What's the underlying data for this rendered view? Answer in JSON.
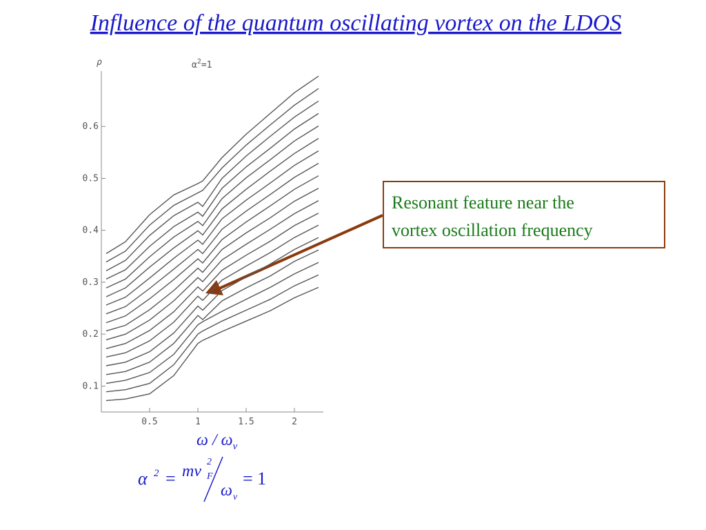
{
  "title": "Influence of the quantum oscillating vortex on the LDOS",
  "chart_data": {
    "type": "line",
    "ylabel": "ρ",
    "plot_label": {
      "base": "α",
      "sup": "2",
      "rest": "=1"
    },
    "xlabel": {
      "main": "ω / ω",
      "sub": "v"
    },
    "color": "#555555",
    "x": [
      0.05,
      0.25,
      0.5,
      0.75,
      1.0,
      1.05,
      1.25,
      1.5,
      1.75,
      2.0,
      2.25
    ],
    "series": [
      {
        "values": [
          0.072,
          0.075,
          0.085,
          0.12,
          0.182,
          0.188,
          0.205,
          0.225,
          0.245,
          0.27,
          0.29
        ]
      },
      {
        "values": [
          0.089,
          0.093,
          0.105,
          0.141,
          0.2,
          0.206,
          0.225,
          0.246,
          0.267,
          0.293,
          0.314
        ]
      },
      {
        "values": [
          0.105,
          0.111,
          0.126,
          0.161,
          0.218,
          0.224,
          0.244,
          0.267,
          0.29,
          0.316,
          0.338
        ]
      },
      {
        "values": [
          0.122,
          0.128,
          0.146,
          0.182,
          0.236,
          0.228,
          0.264,
          0.289,
          0.312,
          0.34,
          0.362
        ]
      },
      {
        "values": [
          0.139,
          0.146,
          0.166,
          0.202,
          0.254,
          0.246,
          0.284,
          0.31,
          0.335,
          0.363,
          0.386
        ]
      },
      {
        "values": [
          0.156,
          0.164,
          0.187,
          0.223,
          0.273,
          0.265,
          0.304,
          0.331,
          0.357,
          0.386,
          0.41
        ]
      },
      {
        "values": [
          0.172,
          0.182,
          0.207,
          0.243,
          0.291,
          0.283,
          0.323,
          0.352,
          0.379,
          0.409,
          0.433
        ]
      },
      {
        "values": [
          0.189,
          0.2,
          0.227,
          0.264,
          0.309,
          0.301,
          0.343,
          0.373,
          0.402,
          0.432,
          0.457
        ]
      },
      {
        "values": [
          0.206,
          0.217,
          0.247,
          0.284,
          0.327,
          0.319,
          0.363,
          0.395,
          0.424,
          0.456,
          0.481
        ]
      },
      {
        "values": [
          0.222,
          0.235,
          0.268,
          0.305,
          0.345,
          0.337,
          0.382,
          0.416,
          0.447,
          0.479,
          0.505
        ]
      },
      {
        "values": [
          0.239,
          0.253,
          0.288,
          0.325,
          0.363,
          0.355,
          0.402,
          0.437,
          0.469,
          0.502,
          0.529
        ]
      },
      {
        "values": [
          0.256,
          0.271,
          0.308,
          0.346,
          0.381,
          0.373,
          0.422,
          0.458,
          0.491,
          0.525,
          0.553
        ]
      },
      {
        "values": [
          0.272,
          0.289,
          0.329,
          0.366,
          0.399,
          0.391,
          0.441,
          0.479,
          0.514,
          0.548,
          0.577
        ]
      },
      {
        "values": [
          0.289,
          0.306,
          0.349,
          0.387,
          0.417,
          0.409,
          0.461,
          0.501,
          0.536,
          0.572,
          0.601
        ]
      },
      {
        "values": [
          0.306,
          0.324,
          0.369,
          0.407,
          0.435,
          0.427,
          0.481,
          0.522,
          0.558,
          0.595,
          0.625
        ]
      },
      {
        "values": [
          0.322,
          0.342,
          0.39,
          0.428,
          0.454,
          0.446,
          0.5,
          0.543,
          0.581,
          0.618,
          0.649
        ]
      },
      {
        "values": [
          0.339,
          0.36,
          0.41,
          0.448,
          0.472,
          0.477,
          0.52,
          0.564,
          0.603,
          0.641,
          0.673
        ]
      },
      {
        "values": [
          0.355,
          0.378,
          0.43,
          0.468,
          0.49,
          0.495,
          0.54,
          0.585,
          0.625,
          0.665,
          0.697
        ]
      }
    ],
    "xlim": [
      0,
      2.3
    ],
    "ylim": [
      0.05,
      0.7
    ],
    "xticks": [
      0.5,
      1,
      1.5,
      2
    ],
    "yticks": [
      0.1,
      0.2,
      0.3,
      0.4,
      0.5,
      0.6
    ]
  },
  "annotation": {
    "lines": [
      "Resonant feature near the",
      "vortex oscillation frequency"
    ]
  },
  "formula": {
    "lhs": "α",
    "lhs_sup": "2",
    "eq": "=",
    "num": "mv",
    "num_sup": "2",
    "num_sub": "F",
    "den": "ω",
    "den_sub": "v",
    "rhs": "= 1"
  }
}
